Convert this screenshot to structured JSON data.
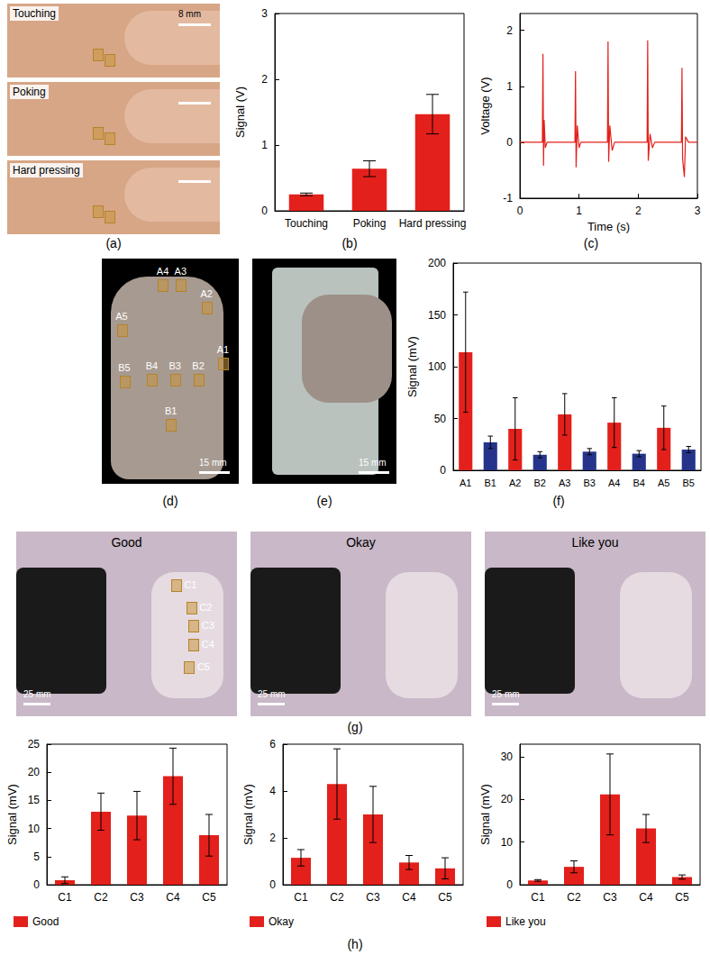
{
  "panel_labels": [
    "(a)",
    "(b)",
    "(c)",
    "(d)",
    "(e)",
    "(f)",
    "(g)",
    "(h)"
  ],
  "photos": {
    "a": {
      "labels": [
        "Touching",
        "Poking",
        "Hard pressing"
      ],
      "scale_bar": "8 mm"
    },
    "d": {
      "labels": [
        "A1",
        "A2",
        "A3",
        "A4",
        "A5",
        "B1",
        "B2",
        "B3",
        "B4",
        "B5"
      ],
      "scale_bar": "15 mm"
    },
    "e": {
      "scale_bar": "15 mm"
    },
    "g": {
      "labels": [
        "Good",
        "Okay",
        "Like you"
      ],
      "markers": [
        "C1",
        "C2",
        "C3",
        "C4",
        "C5"
      ],
      "scale_bar": "25 mm"
    }
  },
  "chart_data": [
    {
      "type": "bar",
      "categories": [
        "Touching",
        "Poking",
        "Hard pressing"
      ],
      "series": [
        {
          "color": "#e3201b",
          "values": [
            0.25,
            0.64,
            1.47
          ],
          "errors": [
            0.02,
            0.12,
            0.3
          ]
        }
      ],
      "ylabel": "Signal (V)",
      "ylim": [
        0,
        3
      ],
      "yticks": [
        0,
        1,
        2,
        3
      ],
      "grid": false
    },
    {
      "type": "line",
      "x": [
        0,
        0.38,
        0.39,
        0.4,
        0.41,
        0.43,
        0.46,
        0.93,
        0.94,
        0.95,
        0.97,
        1.0,
        1.03,
        1.48,
        1.49,
        1.5,
        1.52,
        1.56,
        1.6,
        2.15,
        2.16,
        2.17,
        2.2,
        2.24,
        2.28,
        2.73,
        2.74,
        2.75,
        2.78,
        2.8,
        2.85,
        3.0
      ],
      "values": [
        0,
        0,
        1.58,
        -0.42,
        0.4,
        -0.1,
        0,
        0,
        1.27,
        -0.45,
        0.3,
        -0.1,
        0,
        0,
        1.8,
        -0.35,
        0.3,
        -0.15,
        0,
        0,
        1.82,
        -0.33,
        0.15,
        -0.1,
        0,
        0,
        1.33,
        -0.3,
        -0.62,
        0.1,
        0,
        0
      ],
      "color": "#e3201b",
      "xlabel": "Time (s)",
      "ylabel": "Voltage (V)",
      "xlim": [
        0,
        3
      ],
      "xticks": [
        0,
        1,
        2,
        3
      ],
      "ylim": [
        -1,
        2.3
      ],
      "yticks": [
        -1,
        0,
        1,
        2
      ],
      "grid": false
    },
    {
      "type": "bar",
      "categories": [
        "A1",
        "B1",
        "A2",
        "B2",
        "A3",
        "B3",
        "A4",
        "B4",
        "A5",
        "B5"
      ],
      "series": [
        {
          "colors": [
            "#e3201b",
            "#25348a",
            "#e3201b",
            "#25348a",
            "#e3201b",
            "#25348a",
            "#e3201b",
            "#25348a",
            "#e3201b",
            "#25348a"
          ],
          "values": [
            114,
            27,
            40,
            15,
            54,
            18,
            46,
            16,
            41,
            20
          ],
          "errors": [
            58,
            6,
            30,
            3,
            20,
            3,
            24,
            3,
            21,
            3
          ]
        }
      ],
      "ylabel": "Signal (mV)",
      "ylim": [
        0,
        200
      ],
      "yticks": [
        0,
        50,
        100,
        150,
        200
      ],
      "grid": false
    },
    {
      "type": "bar",
      "categories": [
        "C1",
        "C2",
        "C3",
        "C4",
        "C5"
      ],
      "series": [
        {
          "name": "Good",
          "color": "#e3201b",
          "values": [
            0.8,
            13,
            12.3,
            19.3,
            8.8
          ],
          "errors": [
            0.6,
            3.3,
            4.3,
            5,
            3.7
          ]
        }
      ],
      "ylabel": "Signal (mV)",
      "ylim": [
        0,
        25
      ],
      "yticks": [
        0,
        5,
        10,
        15,
        20,
        25
      ],
      "legend": "bottom",
      "grid": false
    },
    {
      "type": "bar",
      "categories": [
        "C1",
        "C2",
        "C3",
        "C4",
        "C5"
      ],
      "series": [
        {
          "name": "Okay",
          "color": "#e3201b",
          "values": [
            1.15,
            4.3,
            3.0,
            0.95,
            0.7
          ],
          "errors": [
            0.35,
            1.5,
            1.2,
            0.3,
            0.45
          ]
        }
      ],
      "ylabel": "Signal (mV)",
      "ylim": [
        0,
        6
      ],
      "yticks": [
        0,
        2,
        4,
        6
      ],
      "legend": "bottom",
      "grid": false
    },
    {
      "type": "bar",
      "categories": [
        "C1",
        "C2",
        "C3",
        "C4",
        "C5"
      ],
      "series": [
        {
          "name": "Like you",
          "color": "#e3201b",
          "values": [
            1,
            4.2,
            21.2,
            13.2,
            1.8
          ],
          "errors": [
            0.2,
            1.4,
            9.5,
            3.3,
            0.5
          ]
        }
      ],
      "ylabel": "Signal (mV)",
      "ylim": [
        0,
        33
      ],
      "yticks": [
        0,
        10,
        20,
        30
      ],
      "legend": "bottom",
      "grid": false
    }
  ]
}
